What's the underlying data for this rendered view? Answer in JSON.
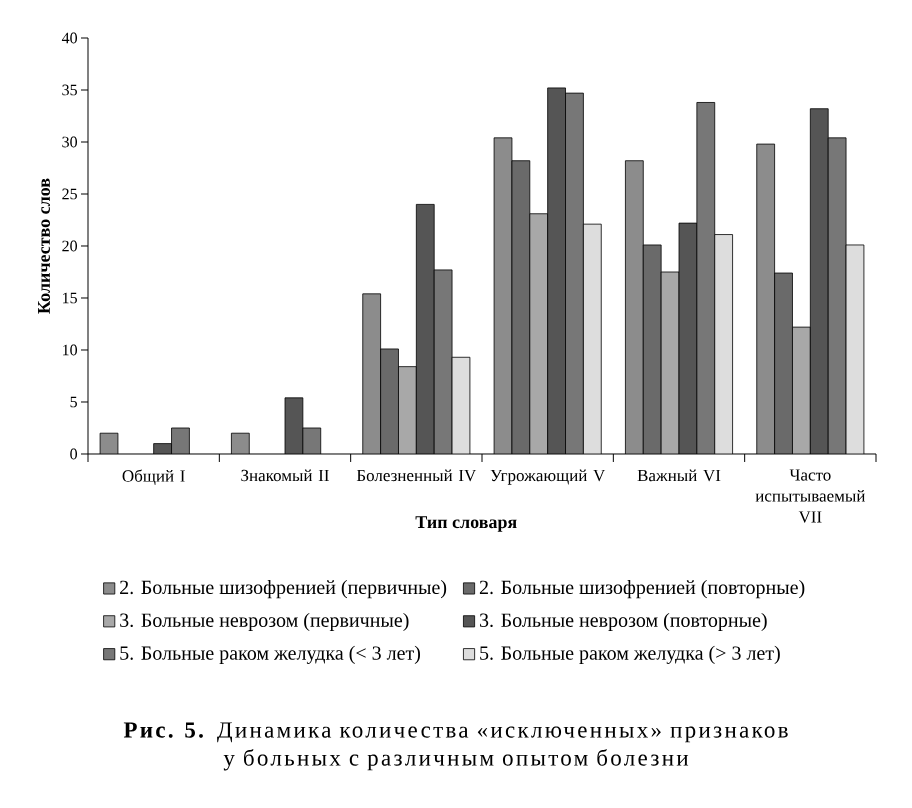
{
  "chart_data": {
    "type": "bar",
    "xlabel": "Тип словаря",
    "ylabel": "Количество слов",
    "categories": [
      "Общий I",
      "Знакомый II",
      "Болезненный IV",
      "Угрожающий V",
      "Важный VI",
      "Часто испытываемый VII"
    ],
    "series": [
      {
        "name": "2. Больные шизофренией (первичные)",
        "color": "#8c8c8c",
        "values": [
          2,
          2,
          15.4,
          30.4,
          28.2,
          29.8
        ]
      },
      {
        "name": "2. Больные шизофренией (повторные)",
        "color": "#6a6a6a",
        "values": [
          null,
          null,
          10.1,
          28.2,
          20.1,
          17.4
        ]
      },
      {
        "name": "3. Больные неврозом (первичные)",
        "color": "#a8a8a8",
        "values": [
          null,
          null,
          8.4,
          23.1,
          17.5,
          12.2
        ]
      },
      {
        "name": "3. Больные неврозом (повторные)",
        "color": "#555555",
        "values": [
          1,
          5.4,
          24,
          35.2,
          22.2,
          33.2
        ]
      },
      {
        "name": "5. Больные раком желудка (< 3 лет)",
        "color": "#777777",
        "values": [
          2.5,
          2.5,
          17.7,
          34.7,
          33.8,
          30.4
        ]
      },
      {
        "name": "5. Больные раком желудка (> 3 лет)",
        "color": "#dddddd",
        "values": [
          null,
          null,
          9.3,
          22.1,
          21.1,
          20.1
        ]
      }
    ],
    "ylim": [
      0,
      40
    ],
    "yticks": [
      0,
      5,
      10,
      15,
      20,
      25,
      30,
      35,
      40
    ],
    "legend": "bottom",
    "annotations": [
      "**Рис. 5.** Динамика количества «исключенных» признаков у больных с различным опытом болезни"
    ]
  }
}
